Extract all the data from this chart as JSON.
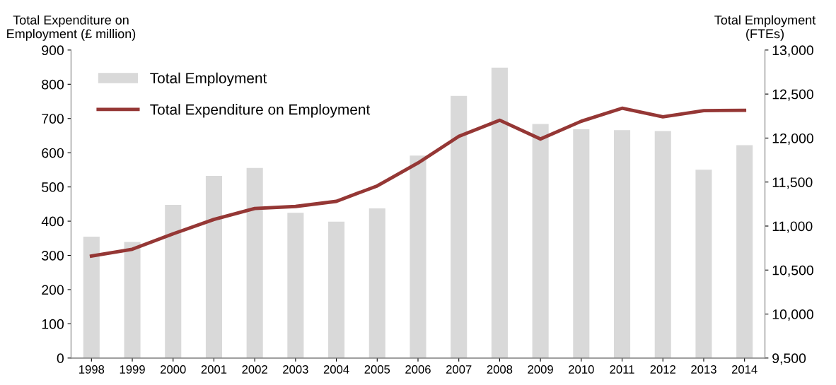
{
  "chart_data": {
    "type": "bar",
    "ylabel": "Total Expenditure on\nEmployment (£ million)",
    "y2label": "Total Employment\n(FTEs)",
    "categories": [
      "1998",
      "1999",
      "2000",
      "2001",
      "2002",
      "2003",
      "2004",
      "2005",
      "2006",
      "2007",
      "2008",
      "2009",
      "2010",
      "2011",
      "2012",
      "2013",
      "2014"
    ],
    "series": [
      {
        "name": "Total Employment",
        "axis": "y2",
        "color": "#d9d9d9",
        "values": [
          10880,
          10820,
          11240,
          11570,
          11660,
          11150,
          11050,
          11200,
          11800,
          12480,
          12800,
          12160,
          12100,
          12090,
          12080,
          11640,
          11920
        ]
      },
      {
        "name": "Total Expenditure on Employment",
        "type": "line",
        "axis": "y",
        "color": "#953735",
        "values": [
          298,
          318,
          363,
          405,
          437,
          443,
          458,
          503,
          570,
          648,
          695,
          640,
          692,
          730,
          705,
          723,
          724
        ]
      }
    ],
    "ylim": [
      0,
      900
    ],
    "yticks": [
      0,
      100,
      200,
      300,
      400,
      500,
      600,
      700,
      800,
      900
    ],
    "y2lim": [
      9500,
      13000
    ],
    "y2ticks": [
      {
        "value": 9500,
        "label": "9,500"
      },
      {
        "value": 10000,
        "label": "10,000"
      },
      {
        "value": 10500,
        "label": "10,500"
      },
      {
        "value": 11000,
        "label": "11,000"
      },
      {
        "value": 11500,
        "label": "11,500"
      },
      {
        "value": 12000,
        "label": "12,000"
      },
      {
        "value": 12500,
        "label": "12,500"
      },
      {
        "value": 13000,
        "label": "13,000"
      }
    ],
    "grid": false,
    "legend": "top left",
    "marker": "none",
    "line_style": "solid"
  }
}
